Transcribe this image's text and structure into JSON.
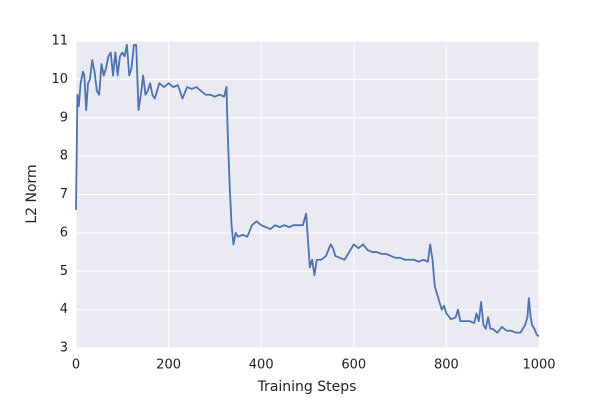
{
  "chart_data": {
    "type": "line",
    "xlabel": "Training Steps",
    "ylabel": "L2 Norm",
    "x": [
      0,
      3,
      6,
      10,
      15,
      18,
      22,
      26,
      30,
      35,
      40,
      45,
      50,
      55,
      60,
      65,
      70,
      75,
      80,
      85,
      90,
      95,
      100,
      105,
      110,
      115,
      120,
      125,
      130,
      135,
      140,
      145,
      150,
      155,
      160,
      165,
      170,
      180,
      190,
      200,
      210,
      220,
      230,
      240,
      250,
      260,
      270,
      280,
      290,
      300,
      310,
      320,
      325,
      328,
      332,
      336,
      340,
      345,
      350,
      360,
      370,
      380,
      390,
      400,
      410,
      420,
      430,
      440,
      450,
      460,
      470,
      480,
      490,
      497,
      500,
      505,
      510,
      515,
      520,
      530,
      540,
      550,
      555,
      560,
      570,
      580,
      590,
      600,
      610,
      620,
      630,
      640,
      650,
      660,
      670,
      680,
      690,
      700,
      710,
      720,
      730,
      740,
      750,
      760,
      765,
      770,
      775,
      780,
      785,
      790,
      795,
      800,
      810,
      820,
      825,
      830,
      840,
      850,
      860,
      865,
      870,
      875,
      880,
      885,
      890,
      895,
      900,
      910,
      920,
      930,
      940,
      950,
      960,
      970,
      975,
      978,
      982,
      985,
      990,
      995,
      1000
    ],
    "series": [
      {
        "name": "L2 Norm",
        "color": "#4c72b0",
        "values": [
          6.6,
          9.6,
          9.3,
          9.9,
          10.2,
          10.1,
          9.2,
          9.9,
          10.0,
          10.5,
          10.2,
          9.7,
          9.6,
          10.4,
          10.1,
          10.3,
          10.6,
          10.7,
          10.1,
          10.7,
          10.1,
          10.6,
          10.7,
          10.6,
          10.9,
          10.1,
          10.3,
          10.9,
          10.9,
          9.2,
          9.6,
          10.1,
          9.6,
          9.7,
          9.9,
          9.6,
          9.5,
          9.9,
          9.8,
          9.9,
          9.8,
          9.85,
          9.5,
          9.8,
          9.75,
          9.8,
          9.7,
          9.6,
          9.6,
          9.55,
          9.6,
          9.55,
          9.8,
          8.5,
          7.2,
          6.2,
          5.7,
          6.0,
          5.9,
          5.95,
          5.9,
          6.2,
          6.3,
          6.2,
          6.15,
          6.1,
          6.2,
          6.15,
          6.2,
          6.15,
          6.2,
          6.2,
          6.2,
          6.5,
          6.0,
          5.1,
          5.3,
          4.9,
          5.3,
          5.3,
          5.4,
          5.7,
          5.6,
          5.4,
          5.35,
          5.3,
          5.5,
          5.7,
          5.6,
          5.7,
          5.55,
          5.5,
          5.5,
          5.45,
          5.45,
          5.4,
          5.35,
          5.35,
          5.3,
          5.3,
          5.3,
          5.25,
          5.3,
          5.25,
          5.7,
          5.3,
          4.6,
          4.4,
          4.2,
          4.0,
          4.1,
          3.9,
          3.75,
          3.8,
          4.0,
          3.7,
          3.7,
          3.7,
          3.65,
          3.9,
          3.7,
          4.2,
          3.6,
          3.5,
          3.8,
          3.5,
          3.5,
          3.4,
          3.55,
          3.45,
          3.45,
          3.4,
          3.4,
          3.6,
          3.8,
          4.3,
          3.8,
          3.6,
          3.5,
          3.35,
          3.3
        ]
      }
    ],
    "xlim": [
      0,
      1000
    ],
    "xticks": [
      0,
      200,
      400,
      600,
      800,
      1000
    ],
    "ylim": [
      3,
      11
    ],
    "yticks": [
      3,
      4,
      5,
      6,
      7,
      8,
      9,
      10,
      11
    ],
    "grid": true
  }
}
